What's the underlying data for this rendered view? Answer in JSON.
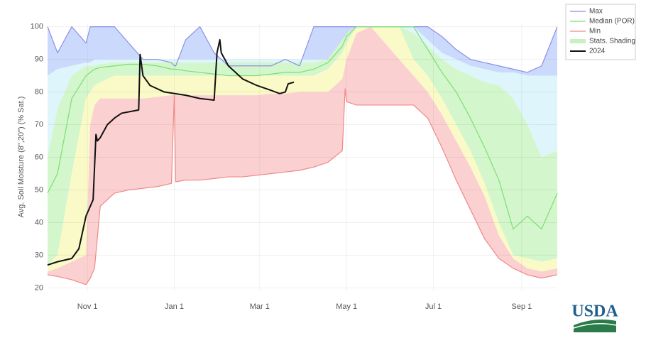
{
  "chart_data": {
    "type": "line",
    "y_label": "Avg. Soil Moisture (8\",20\") (% Sat.)",
    "xlim": [
      3,
      361
    ],
    "xticks": [
      {
        "value": 31,
        "label": "Nov 1"
      },
      {
        "value": 92,
        "label": "Jan 1"
      },
      {
        "value": 152,
        "label": "Mar 1"
      },
      {
        "value": 213,
        "label": "May 1"
      },
      {
        "value": 274,
        "label": "Jul 1"
      },
      {
        "value": 336,
        "label": "Sep 1"
      }
    ],
    "ylim": [
      19,
      101
    ],
    "yticks": [
      20,
      30,
      40,
      50,
      60,
      70,
      80,
      90,
      100
    ],
    "grid": true,
    "legend": "top-right-outside",
    "x": [
      3,
      10,
      20,
      30,
      33,
      36,
      40,
      50,
      60,
      70,
      80,
      90,
      92,
      93,
      100,
      110,
      120,
      130,
      140,
      150,
      160,
      170,
      180,
      190,
      200,
      210,
      212,
      213,
      220,
      230,
      240,
      250,
      260,
      270,
      280,
      290,
      300,
      310,
      320,
      330,
      340,
      350,
      361
    ],
    "shading": {
      "name": "Stats. Shading",
      "legend_color": "#c8f0c0",
      "colors": [
        "#cbdafc",
        "#def5fb",
        "#d3f6cc",
        "#fafac8",
        "#fbd0d0"
      ],
      "boundaries": [
        [
          85,
          87,
          88,
          89,
          89,
          90,
          90,
          90,
          90,
          90,
          90,
          90,
          90,
          90,
          90,
          90,
          90,
          90,
          90,
          90,
          90,
          90,
          90,
          90,
          90,
          95,
          96,
          97,
          100,
          100,
          100,
          100,
          100,
          96,
          92,
          90,
          88,
          87,
          86,
          86,
          85,
          85,
          85
        ],
        [
          60,
          75,
          85,
          88,
          88,
          88,
          88.5,
          89,
          89,
          89,
          89,
          89,
          89,
          89,
          89,
          89,
          89,
          89,
          89,
          89,
          89,
          89,
          89,
          89,
          90,
          96,
          97,
          98,
          100,
          100,
          100,
          100,
          98,
          94,
          90,
          87,
          85,
          83,
          82,
          78,
          70,
          60,
          62
        ],
        [
          27,
          30,
          55,
          78,
          80,
          82,
          83,
          85,
          85,
          85,
          85,
          85,
          85,
          85,
          85,
          85,
          85,
          85,
          85,
          85,
          85,
          85,
          85,
          85,
          87,
          92,
          94,
          95,
          100,
          100,
          100,
          100,
          90,
          85,
          78,
          70,
          62,
          52,
          40,
          30,
          29,
          28,
          29
        ],
        [
          25,
          26,
          28,
          30,
          70,
          76,
          78,
          78,
          78,
          78,
          78.5,
          79,
          79,
          79,
          79,
          79,
          79,
          79,
          79,
          79,
          79.5,
          79.5,
          80,
          80,
          80,
          84,
          88,
          90,
          98,
          100,
          95,
          90,
          85,
          80,
          73,
          65,
          57,
          48,
          36,
          29,
          26,
          25,
          26
        ]
      ]
    },
    "series": [
      {
        "name": "Max",
        "color": "#8b8fe6",
        "role": "upper",
        "values": [
          100,
          92,
          100,
          95,
          100,
          100,
          100,
          100,
          95,
          90,
          90,
          89,
          88,
          88,
          96,
          100,
          92,
          88,
          88,
          88,
          88,
          90,
          88,
          100,
          100,
          100,
          100,
          100,
          100,
          100,
          100,
          100,
          100,
          100,
          97,
          93,
          90,
          89,
          88,
          87,
          86,
          88,
          100
        ]
      },
      {
        "name": "Median (POR)",
        "color": "#7ddf72",
        "values": [
          49,
          55,
          78,
          85,
          86,
          87,
          87.5,
          88,
          88.5,
          88.5,
          88,
          87,
          87,
          87,
          86.5,
          86,
          85.5,
          85,
          85,
          85,
          85.5,
          86,
          86,
          87,
          89,
          94,
          96,
          97,
          100,
          100,
          100,
          100,
          100,
          93,
          86,
          80,
          72,
          63,
          53,
          38,
          42,
          38,
          49
        ]
      },
      {
        "name": "Min",
        "color": "#f08888",
        "role": "lower",
        "values": [
          24,
          23.5,
          22.5,
          21,
          23,
          26,
          45,
          49,
          50,
          50.5,
          51,
          52,
          79,
          52.5,
          53,
          53,
          53.5,
          54,
          54,
          54.5,
          55,
          55.5,
          56,
          57,
          58.5,
          62,
          81,
          77,
          76,
          76,
          76,
          76,
          76,
          72,
          63,
          53,
          44,
          35,
          29,
          26,
          24,
          23,
          24
        ]
      },
      {
        "name": "2024",
        "color": "#111111",
        "width": 2,
        "x": [
          3,
          10,
          20,
          25,
          28,
          30,
          33,
          35,
          36,
          37,
          38,
          40,
          45,
          50,
          55,
          67,
          68,
          70,
          75,
          85,
          100,
          110,
          120,
          122,
          124,
          125,
          130,
          140,
          150,
          160,
          166,
          170,
          172,
          176
        ],
        "values": [
          27,
          28,
          29,
          32,
          38,
          42,
          45,
          47,
          57,
          67,
          65,
          66,
          70,
          72,
          73.5,
          74.5,
          91.5,
          85,
          82,
          80,
          79,
          78,
          77.5,
          92,
          96,
          92,
          88,
          84,
          82,
          80.5,
          79.5,
          80,
          82.5,
          83
        ]
      }
    ],
    "logo_text": "USDA"
  }
}
